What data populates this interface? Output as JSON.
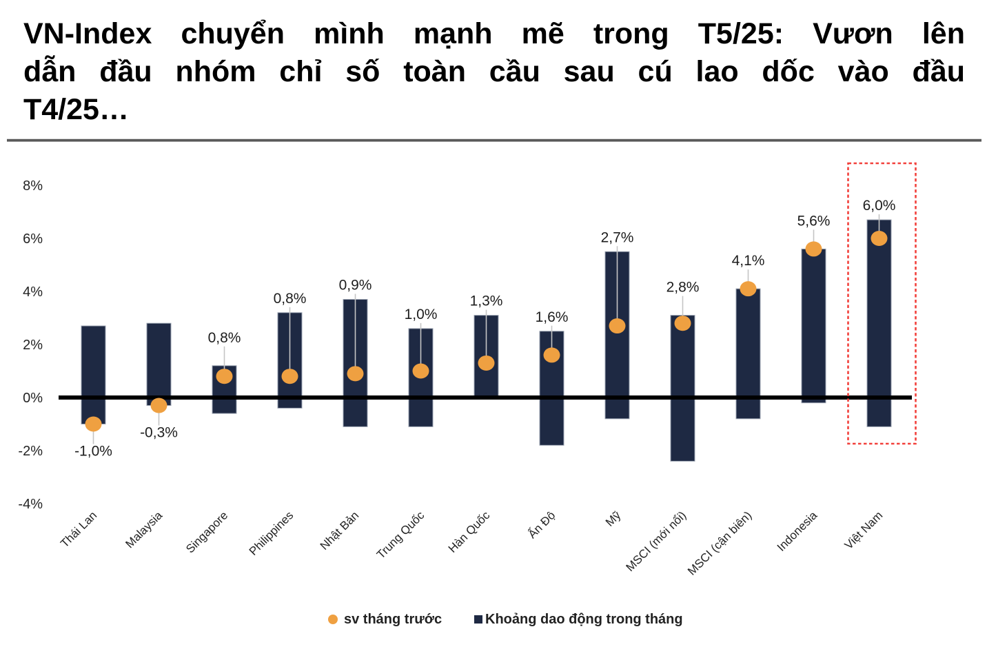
{
  "title_lines": [
    "VN-Index chuyển mình mạnh mẽ trong T5/25: Vươn lên",
    "dẫn đầu nhóm chỉ số toàn cầu sau cú lao dốc vào đầu",
    "T4/25…"
  ],
  "title_full": "VN-Index chuyển mình mạnh mẽ trong T5/25: Vươn lên dẫn đầu nhóm chỉ số toàn cầu sau cú lao dốc vào đầu T4/25…",
  "colors": {
    "bar": "#1E2943",
    "bar_stroke": "#9AA2B0",
    "dot": "#EFA041",
    "leader": "#C4C4C4",
    "axis": "#000000",
    "highlight": "#F2413C",
    "text": "#232323"
  },
  "legend": [
    {
      "label": "sv tháng trước",
      "marker": "circle",
      "color": "#EFA041"
    },
    {
      "label": "Khoảng dao động trong tháng",
      "marker": "square",
      "color": "#1E2943"
    }
  ],
  "chart_data": {
    "type": "bar",
    "subtype": "floating-range-bars-with-dot-markers",
    "title": "",
    "xlabel": "",
    "ylabel": "",
    "ylim": [
      -4,
      8
    ],
    "grid": false,
    "legend_position": "bottom-center",
    "y_axis": {
      "ticks": [
        {
          "value": 8,
          "label": "8%"
        },
        {
          "value": 6,
          "label": "6%"
        },
        {
          "value": 4,
          "label": "4%"
        },
        {
          "value": 2,
          "label": "2%"
        },
        {
          "value": 0,
          "label": "0%"
        },
        {
          "value": -2,
          "label": "-2%"
        },
        {
          "value": -4,
          "label": "-4%"
        }
      ]
    },
    "categories": [
      "Thái Lan",
      "Malaysia",
      "Singapore",
      "Philippines",
      "Nhật Bản",
      "Trung Quốc",
      "Hàn Quốc",
      "Ấn Độ",
      "Mỹ",
      "MSCI (mới nổi)",
      "MSCI (cận biên)",
      "Indonesia",
      "Việt Nam"
    ],
    "series": [
      {
        "name": "sv tháng trước",
        "values": [
          -1.0,
          -0.3,
          0.8,
          0.8,
          0.9,
          1.0,
          1.3,
          1.6,
          2.7,
          2.8,
          4.1,
          5.6,
          6.0
        ]
      },
      {
        "name": "Khoảng dao động trong tháng",
        "ranges": [
          [
            -1.0,
            2.7
          ],
          [
            -0.3,
            2.8
          ],
          [
            -0.6,
            1.2
          ],
          [
            -0.4,
            3.2
          ],
          [
            -1.1,
            3.7
          ],
          [
            -1.1,
            2.6
          ],
          [
            0.0,
            3.1
          ],
          [
            -1.8,
            2.5
          ],
          [
            -0.8,
            5.5
          ],
          [
            -2.4,
            3.1
          ],
          [
            -0.8,
            4.1
          ],
          [
            -0.2,
            5.6
          ],
          [
            -1.1,
            6.7
          ]
        ]
      }
    ],
    "points": [
      {
        "category": "Thái Lan",
        "range": [
          -1.0,
          2.7
        ],
        "dot": -1.0,
        "label": "-1,0%",
        "label_position": "below",
        "highlight": false
      },
      {
        "category": "Malaysia",
        "range": [
          -0.3,
          2.8
        ],
        "dot": -0.3,
        "label": "-0,3%",
        "label_position": "below",
        "highlight": false
      },
      {
        "category": "Singapore",
        "range": [
          -0.6,
          1.2
        ],
        "dot": 0.8,
        "label": "0,8%",
        "label_position": "above",
        "highlight": false
      },
      {
        "category": "Philippines",
        "range": [
          -0.4,
          3.2
        ],
        "dot": 0.8,
        "label": "0,8%",
        "label_position": "above",
        "highlight": false
      },
      {
        "category": "Nhật Bản",
        "range": [
          -1.1,
          3.7
        ],
        "dot": 0.9,
        "label": "0,9%",
        "label_position": "above",
        "highlight": false
      },
      {
        "category": "Trung Quốc",
        "range": [
          -1.1,
          2.6
        ],
        "dot": 1.0,
        "label": "1,0%",
        "label_position": "above",
        "highlight": false
      },
      {
        "category": "Hàn Quốc",
        "range": [
          0.0,
          3.1
        ],
        "dot": 1.3,
        "label": "1,3%",
        "label_position": "above",
        "highlight": false
      },
      {
        "category": "Ấn Độ",
        "range": [
          -1.8,
          2.5
        ],
        "dot": 1.6,
        "label": "1,6%",
        "label_position": "above",
        "highlight": false
      },
      {
        "category": "Mỹ",
        "range": [
          -0.8,
          5.5
        ],
        "dot": 2.7,
        "label": "2,7%",
        "label_position": "above",
        "highlight": false
      },
      {
        "category": "MSCI (mới nổi)",
        "range": [
          -2.4,
          3.1
        ],
        "dot": 2.8,
        "label": "2,8%",
        "label_position": "above",
        "highlight": false
      },
      {
        "category": "MSCI (cận biên)",
        "range": [
          -0.8,
          4.1
        ],
        "dot": 4.1,
        "label": "4,1%",
        "label_position": "above",
        "highlight": false
      },
      {
        "category": "Indonesia",
        "range": [
          -0.2,
          5.6
        ],
        "dot": 5.6,
        "label": "5,6%",
        "label_position": "above",
        "highlight": false
      },
      {
        "category": "Việt Nam",
        "range": [
          -1.1,
          6.7
        ],
        "dot": 6.0,
        "label": "6,0%",
        "label_position": "above",
        "highlight": true
      }
    ]
  }
}
